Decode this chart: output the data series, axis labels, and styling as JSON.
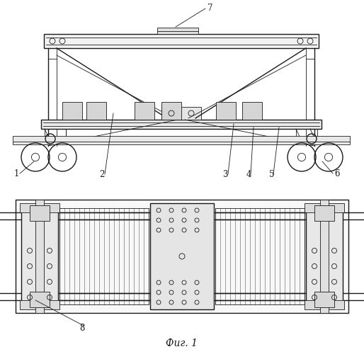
{
  "bg_color": "#ffffff",
  "line_color": "#1a1a1a",
  "title": "Фиг. 1",
  "fig_width": 5.14,
  "fig_height": 5.0,
  "dpi": 100
}
